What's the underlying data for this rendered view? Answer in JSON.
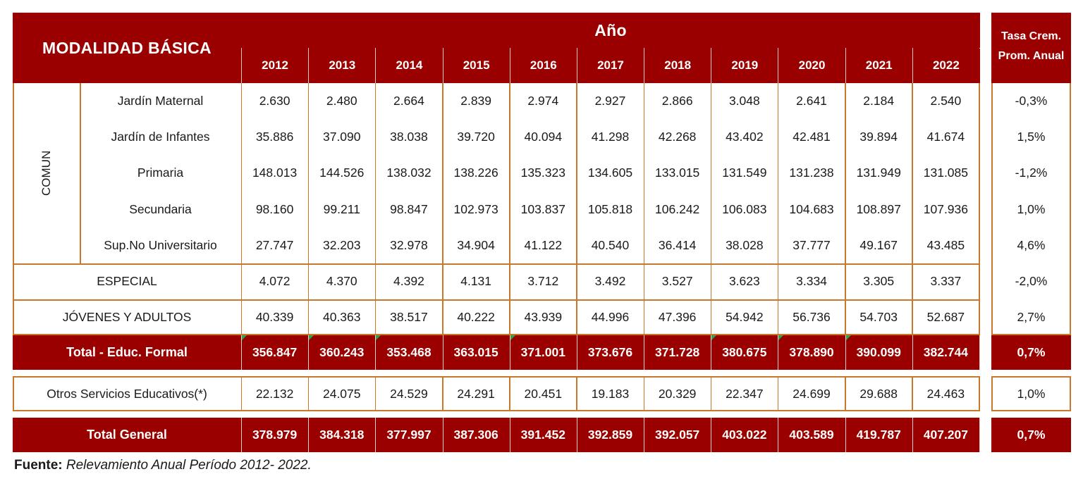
{
  "header": {
    "modalidad": "MODALIDAD BÁSICA",
    "anio": "Año",
    "years": [
      "2012",
      "2013",
      "2014",
      "2015",
      "2016",
      "2017",
      "2018",
      "2019",
      "2020",
      "2021",
      "2022"
    ],
    "tasa_line1": "Tasa Crem.",
    "tasa_line2": "Prom. Anual"
  },
  "comun_label": "COMUN",
  "comun_rows": [
    {
      "label": "Jardín Maternal",
      "values": [
        "2.630",
        "2.480",
        "2.664",
        "2.839",
        "2.974",
        "2.927",
        "2.866",
        "3.048",
        "2.641",
        "2.184",
        "2.540"
      ],
      "tasa": "-0,3%"
    },
    {
      "label": "Jardín de Infantes",
      "values": [
        "35.886",
        "37.090",
        "38.038",
        "39.720",
        "40.094",
        "41.298",
        "42.268",
        "43.402",
        "42.481",
        "39.894",
        "41.674"
      ],
      "tasa": "1,5%"
    },
    {
      "label": "Primaria",
      "values": [
        "148.013",
        "144.526",
        "138.032",
        "138.226",
        "135.323",
        "134.605",
        "133.015",
        "131.549",
        "131.238",
        "131.949",
        "131.085"
      ],
      "tasa": "-1,2%"
    },
    {
      "label": "Secundaria",
      "values": [
        "98.160",
        "99.211",
        "98.847",
        "102.973",
        "103.837",
        "105.818",
        "106.242",
        "106.083",
        "104.683",
        "108.897",
        "107.936"
      ],
      "tasa": "1,0%"
    },
    {
      "label": "Sup.No Universitario",
      "values": [
        "27.747",
        "32.203",
        "32.978",
        "34.904",
        "41.122",
        "40.540",
        "36.414",
        "38.028",
        "37.777",
        "49.167",
        "43.485"
      ],
      "tasa": "4,6%"
    }
  ],
  "especial": {
    "label": "ESPECIAL",
    "values": [
      "4.072",
      "4.370",
      "4.392",
      "4.131",
      "3.712",
      "3.492",
      "3.527",
      "3.623",
      "3.334",
      "3.305",
      "3.337"
    ],
    "tasa": "-2,0%"
  },
  "jovenes": {
    "label": "JÓVENES Y ADULTOS",
    "values": [
      "40.339",
      "40.363",
      "38.517",
      "40.222",
      "43.939",
      "44.996",
      "47.396",
      "54.942",
      "56.736",
      "54.703",
      "52.687"
    ],
    "tasa": "2,7%"
  },
  "total_formal": {
    "label": "Total - Educ. Formal",
    "values": [
      "356.847",
      "360.243",
      "353.468",
      "363.015",
      "371.001",
      "373.676",
      "371.728",
      "380.675",
      "378.890",
      "390.099",
      "382.744"
    ],
    "tasa": "0,7%"
  },
  "otros": {
    "label": "Otros Servicios Educativos(*)",
    "values": [
      "22.132",
      "24.075",
      "24.529",
      "24.291",
      "20.451",
      "19.183",
      "20.329",
      "22.347",
      "24.699",
      "29.688",
      "24.463"
    ],
    "tasa": "1,0%"
  },
  "total_general": {
    "label": "Total General",
    "values": [
      "378.979",
      "384.318",
      "377.997",
      "387.306",
      "391.452",
      "392.859",
      "392.057",
      "403.022",
      "403.589",
      "419.787",
      "407.207"
    ],
    "tasa": "0,7%"
  },
  "source": {
    "prefix": "Fuente:",
    "text": "Relevamiento Anual Período 2012- 2022."
  },
  "colors": {
    "header_red": "#9b0000",
    "border_orange": "#c8772c",
    "marker_green": "#2aa34a"
  }
}
